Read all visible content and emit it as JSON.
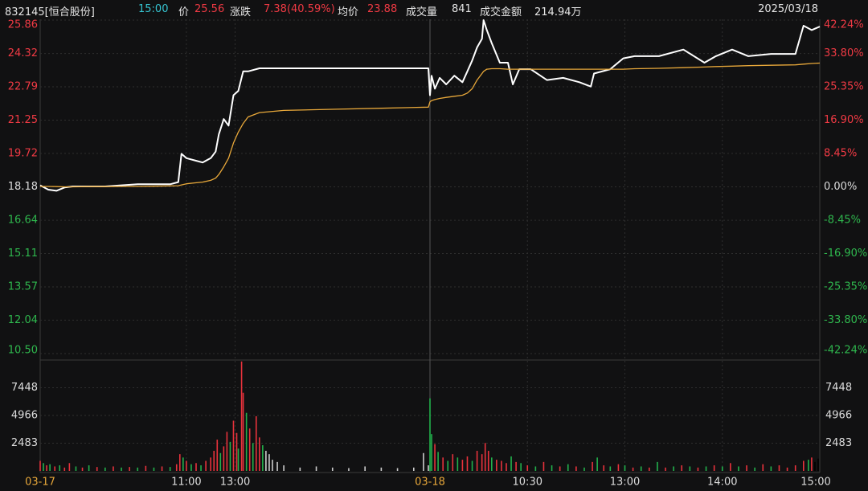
{
  "header": {
    "code": "832145[恒合股份]",
    "time": "15:00",
    "price_label": "价",
    "price": "25.56",
    "change_label": "涨跌",
    "change": "7.38(40.59%)",
    "avg_label": "均价",
    "avg": "23.88",
    "volume_label": "成交量",
    "volume": "841",
    "amount_label": "成交金额",
    "amount": "214.94万",
    "date": "2025/03/18"
  },
  "chart_data": [
    {
      "type": "line",
      "x": [
        0,
        5,
        10,
        15,
        20,
        30,
        40,
        50,
        60,
        70,
        80,
        85,
        87,
        90,
        95,
        100,
        105,
        108,
        110,
        113,
        116,
        119,
        122,
        125,
        128,
        135,
        150,
        180,
        210,
        239,
        240,
        241,
        243,
        246,
        250,
        255,
        260,
        263,
        266,
        269,
        272,
        273,
        275,
        278,
        283,
        288,
        291,
        295,
        302,
        312,
        322,
        332,
        339,
        341,
        351,
        359,
        366,
        381,
        396,
        409,
        416,
        426,
        436,
        450,
        465,
        470,
        475,
        480
      ],
      "series": [
        {
          "color": "#ffffff",
          "values": [
            18.25,
            18.05,
            18.0,
            18.15,
            18.2,
            18.2,
            18.2,
            18.25,
            18.3,
            18.3,
            18.3,
            18.4,
            19.7,
            19.5,
            19.4,
            19.3,
            19.5,
            19.8,
            20.6,
            21.3,
            21.0,
            22.4,
            22.6,
            23.5,
            23.5,
            23.64,
            23.64,
            23.64,
            23.64,
            23.64,
            22.4,
            23.3,
            22.7,
            23.2,
            22.9,
            23.3,
            23.0,
            23.5,
            24.0,
            24.6,
            25.0,
            25.86,
            25.4,
            24.8,
            23.9,
            23.9,
            22.9,
            23.6,
            23.6,
            23.1,
            23.2,
            23.0,
            22.8,
            23.4,
            23.6,
            24.1,
            24.2,
            24.2,
            24.5,
            23.9,
            24.2,
            24.5,
            24.2,
            24.3,
            24.3,
            25.6,
            25.4,
            25.56
          ]
        },
        {
          "color": "#e8a83a",
          "values": [
            18.2,
            18.2,
            18.19,
            18.18,
            18.18,
            18.19,
            18.19,
            18.2,
            18.2,
            18.21,
            18.22,
            18.23,
            18.27,
            18.32,
            18.36,
            18.4,
            18.48,
            18.58,
            18.75,
            19.1,
            19.5,
            20.2,
            20.7,
            21.1,
            21.4,
            21.6,
            21.7,
            21.75,
            21.8,
            21.85,
            22.1,
            22.15,
            22.2,
            22.25,
            22.3,
            22.35,
            22.4,
            22.5,
            22.7,
            23.1,
            23.4,
            23.5,
            23.6,
            23.62,
            23.62,
            23.6,
            23.6,
            23.6,
            23.6,
            23.6,
            23.6,
            23.6,
            23.6,
            23.6,
            23.6,
            23.6,
            23.62,
            23.64,
            23.67,
            23.7,
            23.72,
            23.74,
            23.76,
            23.78,
            23.8,
            23.83,
            23.86,
            23.88
          ]
        }
      ],
      "xlim": [
        0,
        480
      ],
      "xticks": [
        {
          "value": 0,
          "label": "03-17"
        },
        {
          "value": 90,
          "label": "11:00"
        },
        {
          "value": 120,
          "label": "13:00"
        },
        {
          "value": 240,
          "label": "03-18"
        },
        {
          "value": 300,
          "label": "10:30"
        },
        {
          "value": 360,
          "label": "13:00"
        },
        {
          "value": 420,
          "label": "14:00"
        },
        {
          "value": 480,
          "label": "15:00"
        }
      ],
      "ylim": [
        10.5,
        25.86
      ],
      "yticks": [
        25.86,
        24.32,
        22.79,
        21.25,
        19.72,
        18.18,
        16.64,
        15.11,
        13.57,
        12.04,
        {
          "value": 10.5,
          "label": "10.50"
        }
      ],
      "y2lim": [
        -42.24,
        42.24
      ],
      "y2ticks": [
        {
          "value": 42.24,
          "label": "42.24%"
        },
        {
          "value": 33.8,
          "label": "33.80%"
        },
        {
          "value": 25.35,
          "label": "25.35%"
        },
        {
          "value": 16.9,
          "label": "16.90%"
        },
        {
          "value": 8.45,
          "label": "8.45%"
        },
        {
          "value": 0,
          "label": "0.00%"
        },
        {
          "value": -8.45,
          "label": "-8.45%"
        },
        {
          "value": -16.9,
          "label": "-16.90%"
        },
        {
          "value": -25.35,
          "label": "-25.35%"
        },
        {
          "value": -33.8,
          "label": "-33.80%"
        },
        {
          "value": -42.24,
          "label": "-42.24%"
        }
      ],
      "grid": true
    },
    {
      "type": "bar",
      "x": [
        0,
        2,
        4,
        6,
        9,
        12,
        15,
        18,
        22,
        26,
        30,
        35,
        40,
        45,
        50,
        55,
        60,
        65,
        70,
        75,
        80,
        84,
        86,
        88,
        90,
        93,
        96,
        99,
        102,
        105,
        107,
        109,
        111,
        113,
        115,
        117,
        119,
        121,
        122,
        124,
        125,
        127,
        129,
        131,
        133,
        135,
        137,
        139,
        141,
        143,
        146,
        150,
        160,
        170,
        180,
        190,
        200,
        210,
        220,
        230,
        236,
        239,
        240,
        241,
        243,
        245,
        248,
        251,
        254,
        257,
        260,
        263,
        266,
        269,
        272,
        274,
        276,
        278,
        281,
        284,
        287,
        290,
        293,
        296,
        300,
        305,
        310,
        315,
        320,
        325,
        330,
        335,
        340,
        343,
        347,
        351,
        356,
        360,
        365,
        370,
        375,
        380,
        385,
        390,
        395,
        400,
        405,
        410,
        415,
        420,
        425,
        430,
        435,
        440,
        445,
        450,
        455,
        460,
        465,
        470,
        473,
        475,
        477,
        479
      ],
      "values": [
        900,
        700,
        500,
        600,
        400,
        500,
        300,
        700,
        400,
        300,
        500,
        350,
        300,
        400,
        300,
        350,
        300,
        450,
        300,
        400,
        350,
        600,
        1500,
        1200,
        900,
        600,
        700,
        500,
        900,
        1200,
        1800,
        2800,
        1600,
        2200,
        3500,
        2600,
        4500,
        3400,
        2000,
        9800,
        7000,
        5200,
        3800,
        2500,
        4900,
        3000,
        2300,
        1800,
        1500,
        1000,
        800,
        500,
        300,
        400,
        300,
        250,
        400,
        300,
        250,
        300,
        1600,
        500,
        6500,
        3300,
        2400,
        1700,
        1200,
        900,
        1500,
        1200,
        1000,
        1300,
        900,
        1800,
        1500,
        2500,
        1800,
        1200,
        1000,
        900,
        700,
        1300,
        800,
        700,
        500,
        400,
        800,
        500,
        400,
        600,
        400,
        300,
        800,
        1200,
        500,
        400,
        600,
        500,
        300,
        400,
        300,
        800,
        300,
        400,
        500,
        400,
        300,
        400,
        500,
        400,
        700,
        400,
        500,
        300,
        600,
        400,
        500,
        300,
        500,
        900,
        1000,
        1200,
        800,
        1100
      ],
      "colors": [
        "#e8323c",
        "#22b14c",
        "#e8323c",
        "#22b14c",
        "#e8323c",
        "#22b14c",
        "#e8323c",
        "#e8323c",
        "#22b14c",
        "#e8323c",
        "#22b14c",
        "#e8323c",
        "#22b14c",
        "#e8323c",
        "#22b14c",
        "#e8323c",
        "#22b14c",
        "#e8323c",
        "#22b14c",
        "#e8323c",
        "#22b14c",
        "#e8323c",
        "#e8323c",
        "#22b14c",
        "#e8323c",
        "#22b14c",
        "#e8323c",
        "#22b14c",
        "#e8323c",
        "#e8323c",
        "#e8323c",
        "#e8323c",
        "#22b14c",
        "#e8323c",
        "#e8323c",
        "#22b14c",
        "#e8323c",
        "#e8323c",
        "#22b14c",
        "#e8323c",
        "#e8323c",
        "#22b14c",
        "#e8323c",
        "#22b14c",
        "#e8323c",
        "#e8323c",
        "#22b14c",
        "#cccccc",
        "#cccccc",
        "#cccccc",
        "#cccccc",
        "#cccccc",
        "#cccccc",
        "#cccccc",
        "#cccccc",
        "#cccccc",
        "#cccccc",
        "#cccccc",
        "#cccccc",
        "#cccccc",
        "#cccccc",
        "#cccccc",
        "#22b14c",
        "#22b14c",
        "#e8323c",
        "#22b14c",
        "#e8323c",
        "#22b14c",
        "#e8323c",
        "#22b14c",
        "#e8323c",
        "#e8323c",
        "#22b14c",
        "#e8323c",
        "#e8323c",
        "#e8323c",
        "#e8323c",
        "#22b14c",
        "#e8323c",
        "#e8323c",
        "#e8323c",
        "#22b14c",
        "#e8323c",
        "#22b14c",
        "#e8323c",
        "#22b14c",
        "#e8323c",
        "#22b14c",
        "#e8323c",
        "#22b14c",
        "#e8323c",
        "#22b14c",
        "#e8323c",
        "#22b14c",
        "#e8323c",
        "#22b14c",
        "#e8323c",
        "#22b14c",
        "#e8323c",
        "#22b14c",
        "#e8323c",
        "#22b14c",
        "#e8323c",
        "#22b14c",
        "#e8323c",
        "#22b14c",
        "#e8323c",
        "#22b14c",
        "#e8323c",
        "#22b14c",
        "#e8323c",
        "#22b14c",
        "#e8323c",
        "#22b14c",
        "#e8323c",
        "#22b14c",
        "#e8323c",
        "#e8323c",
        "#e8323c",
        "#e8323c",
        "#22b14c",
        "#e8323c"
      ],
      "xlim": [
        0,
        480
      ],
      "ylim": [
        0,
        9931
      ],
      "yticks": [
        2483,
        4966,
        7448
      ],
      "grid": true
    }
  ]
}
